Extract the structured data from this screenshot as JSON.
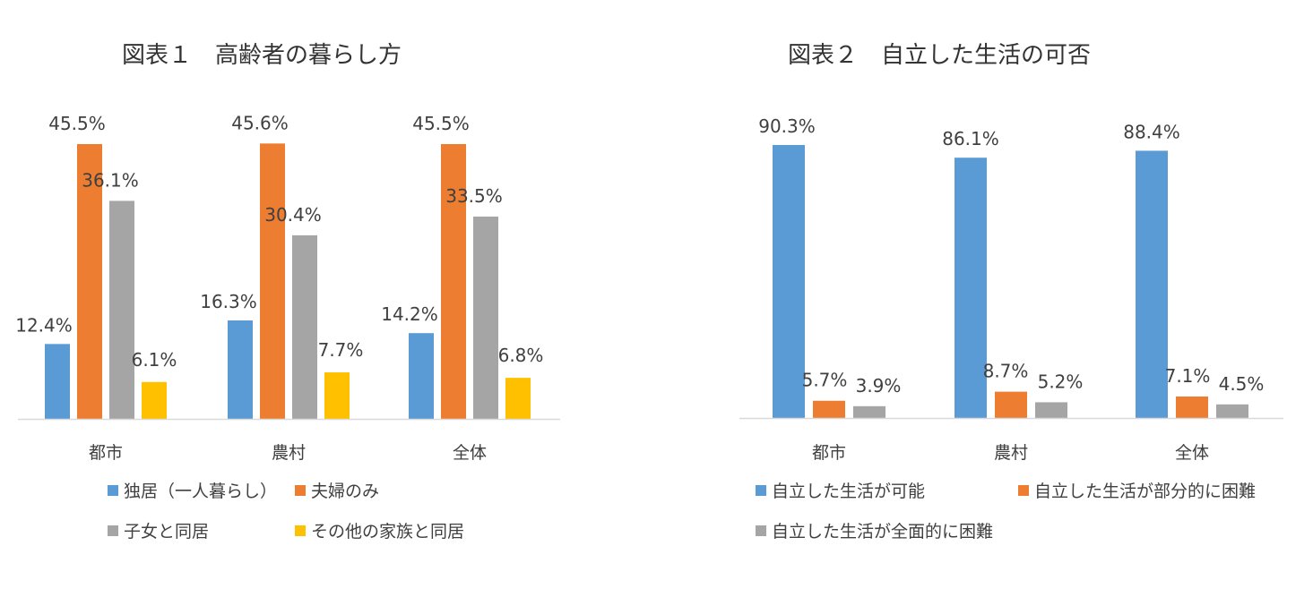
{
  "chart_data": [
    {
      "type": "bar",
      "title": "図表１　高齢者の暮らし方",
      "categories": [
        "都市",
        "農村",
        "全体"
      ],
      "ylim": [
        0,
        50
      ],
      "grid": false,
      "legend_position": "bottom",
      "series": [
        {
          "name": "独居（一人暮らし）",
          "color": "#5b9bd5",
          "values": [
            12.4,
            16.3,
            14.2
          ],
          "labels": [
            "12.4%",
            "16.3%",
            "14.2%"
          ]
        },
        {
          "name": "夫婦のみ",
          "color": "#ed7d31",
          "values": [
            45.5,
            45.6,
            45.5
          ],
          "labels": [
            "45.5%",
            "45.6%",
            "45.5%"
          ]
        },
        {
          "name": "子女と同居",
          "color": "#a5a5a5",
          "values": [
            36.1,
            30.4,
            33.5
          ],
          "labels": [
            "36.1%",
            "30.4%",
            "33.5%"
          ]
        },
        {
          "name": "その他の家族と同居",
          "color": "#ffc000",
          "values": [
            6.1,
            7.7,
            6.8
          ],
          "labels": [
            "6.1%",
            "7.7%",
            "6.8%"
          ]
        }
      ]
    },
    {
      "type": "bar",
      "title": "図表２　自立した生活の可否",
      "categories": [
        "都市",
        "農村",
        "全体"
      ],
      "ylim": [
        0,
        100
      ],
      "grid": false,
      "legend_position": "bottom",
      "series": [
        {
          "name": "自立した生活が可能",
          "color": "#5b9bd5",
          "values": [
            90.3,
            86.1,
            88.4
          ],
          "labels": [
            "90.3%",
            "86.1%",
            "88.4%"
          ]
        },
        {
          "name": "自立した生活が部分的に困難",
          "color": "#ed7d31",
          "values": [
            5.7,
            8.7,
            7.1
          ],
          "labels": [
            "5.7%",
            "8.7%",
            "7.1%"
          ]
        },
        {
          "name": "自立した生活が全面的に困難",
          "color": "#a5a5a5",
          "values": [
            3.9,
            5.2,
            4.5
          ],
          "labels": [
            "3.9%",
            "5.2%",
            "4.5%"
          ]
        }
      ]
    }
  ]
}
